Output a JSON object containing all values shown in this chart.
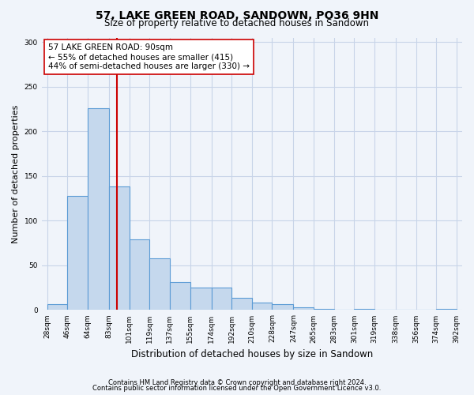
{
  "title": "57, LAKE GREEN ROAD, SANDOWN, PO36 9HN",
  "subtitle": "Size of property relative to detached houses in Sandown",
  "xlabel": "Distribution of detached houses by size in Sandown",
  "ylabel": "Number of detached properties",
  "bar_values": [
    7,
    128,
    226,
    138,
    79,
    58,
    31,
    25,
    25,
    14,
    8,
    7,
    3,
    1,
    0,
    1,
    0,
    0,
    0,
    1
  ],
  "bin_edges": [
    28,
    46,
    64,
    83,
    101,
    119,
    137,
    155,
    174,
    192,
    210,
    228,
    247,
    265,
    283,
    301,
    319,
    338,
    356,
    374,
    392
  ],
  "bin_labels": [
    "28sqm",
    "46sqm",
    "64sqm",
    "83sqm",
    "101sqm",
    "119sqm",
    "137sqm",
    "155sqm",
    "174sqm",
    "192sqm",
    "210sqm",
    "228sqm",
    "247sqm",
    "265sqm",
    "283sqm",
    "301sqm",
    "319sqm",
    "338sqm",
    "356sqm",
    "374sqm",
    "392sqm"
  ],
  "bar_color": "#c5d8ed",
  "bar_edge_color": "#5b9bd5",
  "property_size": 90,
  "vline_color": "#cc0000",
  "annotation_text": "57 LAKE GREEN ROAD: 90sqm\n← 55% of detached houses are smaller (415)\n44% of semi-detached houses are larger (330) →",
  "annotation_box_color": "#ffffff",
  "annotation_box_edge": "#cc0000",
  "ylim": [
    0,
    305
  ],
  "yticks": [
    0,
    50,
    100,
    150,
    200,
    250,
    300
  ],
  "footer_line1": "Contains HM Land Registry data © Crown copyright and database right 2024.",
  "footer_line2": "Contains public sector information licensed under the Open Government Licence v3.0.",
  "background_color": "#f0f4fa",
  "grid_color": "#c8d4e8"
}
